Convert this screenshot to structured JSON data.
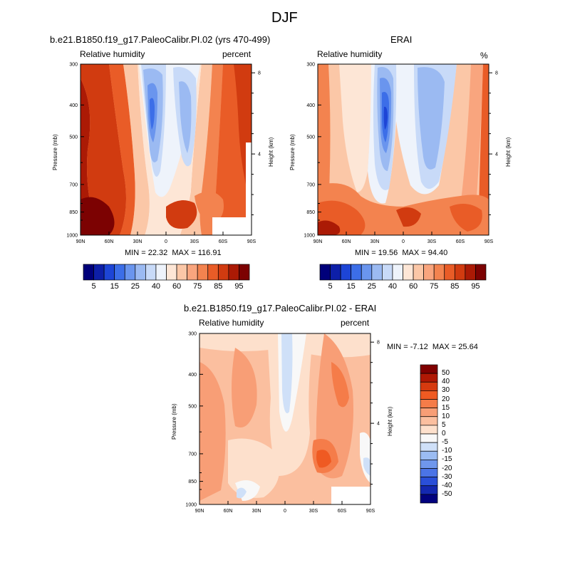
{
  "figure_title": "DJF",
  "chart_data": [
    {
      "type": "contour",
      "title": "b.e21.B1850.f19_g17.PaleoCalibr.PI.02 (yrs 470-499)",
      "left_subtitle": "Relative humidity",
      "right_subtitle": "percent",
      "xlabel": "",
      "ylabel": "Pressure (mb)",
      "y2label": "Height (km)",
      "x_ticks": [
        "90N",
        "60N",
        "30N",
        "0",
        "30S",
        "60S",
        "90S"
      ],
      "y_ticks": [
        "300",
        "400",
        "500",
        "700",
        "850",
        "1000"
      ],
      "y_tick_values": [
        300,
        400,
        500,
        700,
        850,
        1000
      ],
      "y2_ticks": [
        "8",
        "4"
      ],
      "min_label": "MIN = ",
      "min": "22.32",
      "max_label": "MAX = ",
      "max": "116.91",
      "colorbar_labels": [
        "5",
        "15",
        "25",
        "40",
        "60",
        "75",
        "85",
        "95"
      ]
    },
    {
      "type": "contour",
      "title": "ERAI",
      "left_subtitle": "Relative humidity",
      "right_subtitle": "%",
      "xlabel": "",
      "ylabel": "Pressure (mb)",
      "y2label": "Height (km)",
      "x_ticks": [
        "90N",
        "60N",
        "30N",
        "0",
        "30S",
        "60S",
        "90S"
      ],
      "y_ticks": [
        "300",
        "400",
        "500",
        "700",
        "850",
        "1000"
      ],
      "y_tick_values": [
        300,
        400,
        500,
        700,
        850,
        1000
      ],
      "y2_ticks": [
        "8",
        "4"
      ],
      "min_label": "MIN = ",
      "min": "19.56",
      "max_label": "MAX = ",
      "max": "94.40",
      "colorbar_labels": [
        "5",
        "15",
        "25",
        "40",
        "60",
        "75",
        "85",
        "95"
      ]
    },
    {
      "type": "contour",
      "title": "b.e21.B1850.f19_g17.PaleoCalibr.PI.02 - ERAI",
      "left_subtitle": "Relative humidity",
      "right_subtitle": "percent",
      "xlabel": "",
      "ylabel": "Pressure (mb)",
      "y2label": "Height (km)",
      "x_ticks": [
        "90N",
        "60N",
        "30N",
        "0",
        "30S",
        "60S",
        "90S"
      ],
      "y_ticks": [
        "300",
        "400",
        "500",
        "700",
        "850",
        "1000"
      ],
      "y_tick_values": [
        300,
        400,
        500,
        700,
        850,
        1000
      ],
      "y2_ticks": [
        "8",
        "4"
      ],
      "min_label": "MIN = ",
      "min": "-7.12",
      "max_label": "MAX = ",
      "max": "25.64",
      "colorbar_labels": [
        "50",
        "40",
        "30",
        "20",
        "15",
        "10",
        "5",
        "0",
        "-5",
        "-10",
        "-15",
        "-20",
        "-30",
        "-40",
        "-50"
      ]
    }
  ],
  "colors": {
    "abs_scale": [
      "#00007a",
      "#0d1fa8",
      "#1d45d6",
      "#3c6ee8",
      "#6a95ee",
      "#9bbaf2",
      "#c8daf8",
      "#eef3fb",
      "#fde6d6",
      "#fbc7a7",
      "#f9a57e",
      "#f3834f",
      "#e95c27",
      "#d13b10",
      "#ab1a05",
      "#7c0202"
    ],
    "diff_scale": [
      "#800000",
      "#b01804",
      "#d63a0f",
      "#ef5a22",
      "#f57c49",
      "#f89e76",
      "#fbbf9f",
      "#fde0cc",
      "#f8f8f8",
      "#cfe0f8",
      "#9bbcf2",
      "#6f97ec",
      "#4b74e6",
      "#2a4fd8",
      "#1428b0",
      "#02027e"
    ],
    "missing": "#ffffff"
  }
}
